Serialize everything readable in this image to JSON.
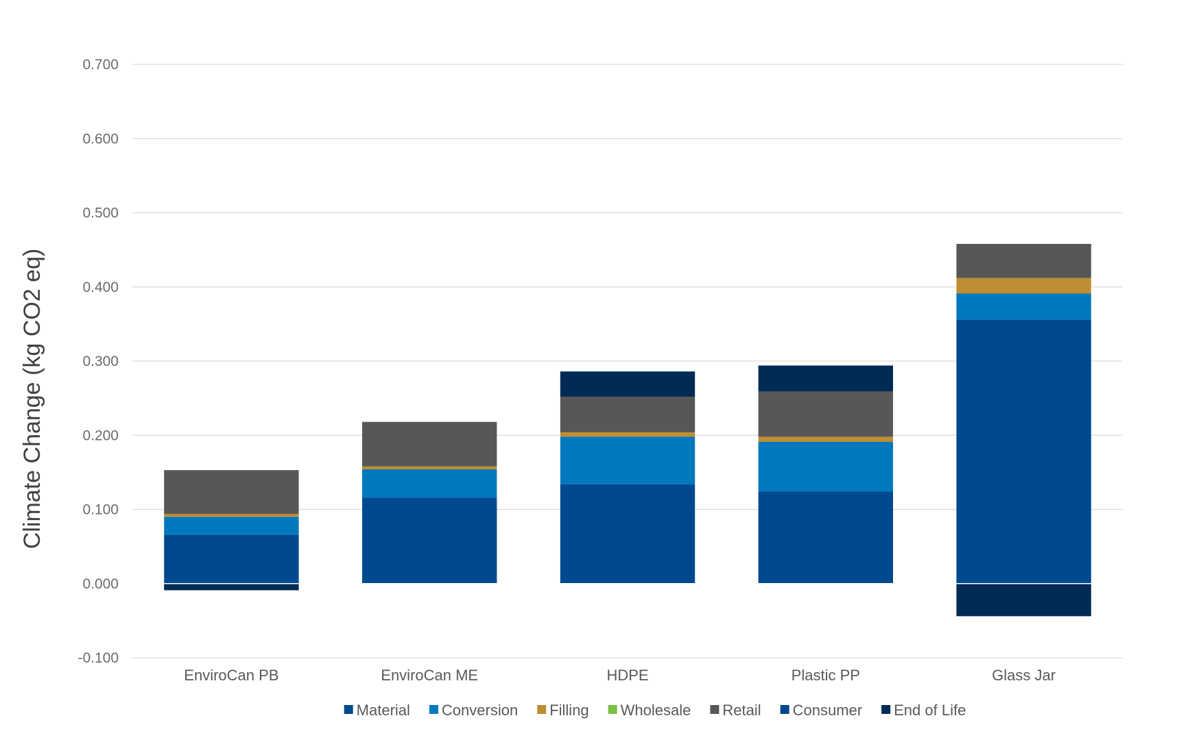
{
  "chart_data": {
    "type": "bar",
    "stacked": true,
    "ylabel": "Climate Change (kg CO2 eq)",
    "ylim": [
      -0.1,
      0.7
    ],
    "yticks": [
      -0.1,
      0.0,
      0.1,
      0.2,
      0.3,
      0.4,
      0.5,
      0.6,
      0.7
    ],
    "ytick_labels": [
      "-0.100",
      "0.000",
      "0.100",
      "0.200",
      "0.300",
      "0.400",
      "0.500",
      "0.600",
      "0.700"
    ],
    "grid": true,
    "legend_position": "bottom",
    "categories": [
      "EnviroCan PB",
      "EnviroCan ME",
      "HDPE",
      "Plastic PP",
      "Glass Jar"
    ],
    "series": [
      {
        "name": "Material",
        "color": "#00498f",
        "values": [
          0.066,
          0.116,
          0.134,
          0.124,
          0.356
        ]
      },
      {
        "name": "Conversion",
        "color": "#0078be",
        "values": [
          0.024,
          0.038,
          0.064,
          0.067,
          0.035
        ]
      },
      {
        "name": "Filling",
        "color": "#bd8e32",
        "values": [
          0.004,
          0.004,
          0.006,
          0.007,
          0.021
        ]
      },
      {
        "name": "Wholesale",
        "color": "#7ac143",
        "values": [
          0.0,
          0.0,
          0.0,
          0.0,
          0.0
        ]
      },
      {
        "name": "Retail",
        "color": "#575757",
        "values": [
          0.059,
          0.06,
          0.048,
          0.061,
          0.046
        ]
      },
      {
        "name": "Consumer",
        "color": "#00498f",
        "values": [
          0.0,
          0.0,
          0.0,
          0.0,
          0.0
        ]
      },
      {
        "name": "End of Life",
        "color": "#002b55",
        "values": [
          -0.009,
          0.0,
          0.034,
          0.035,
          -0.044
        ]
      }
    ]
  }
}
